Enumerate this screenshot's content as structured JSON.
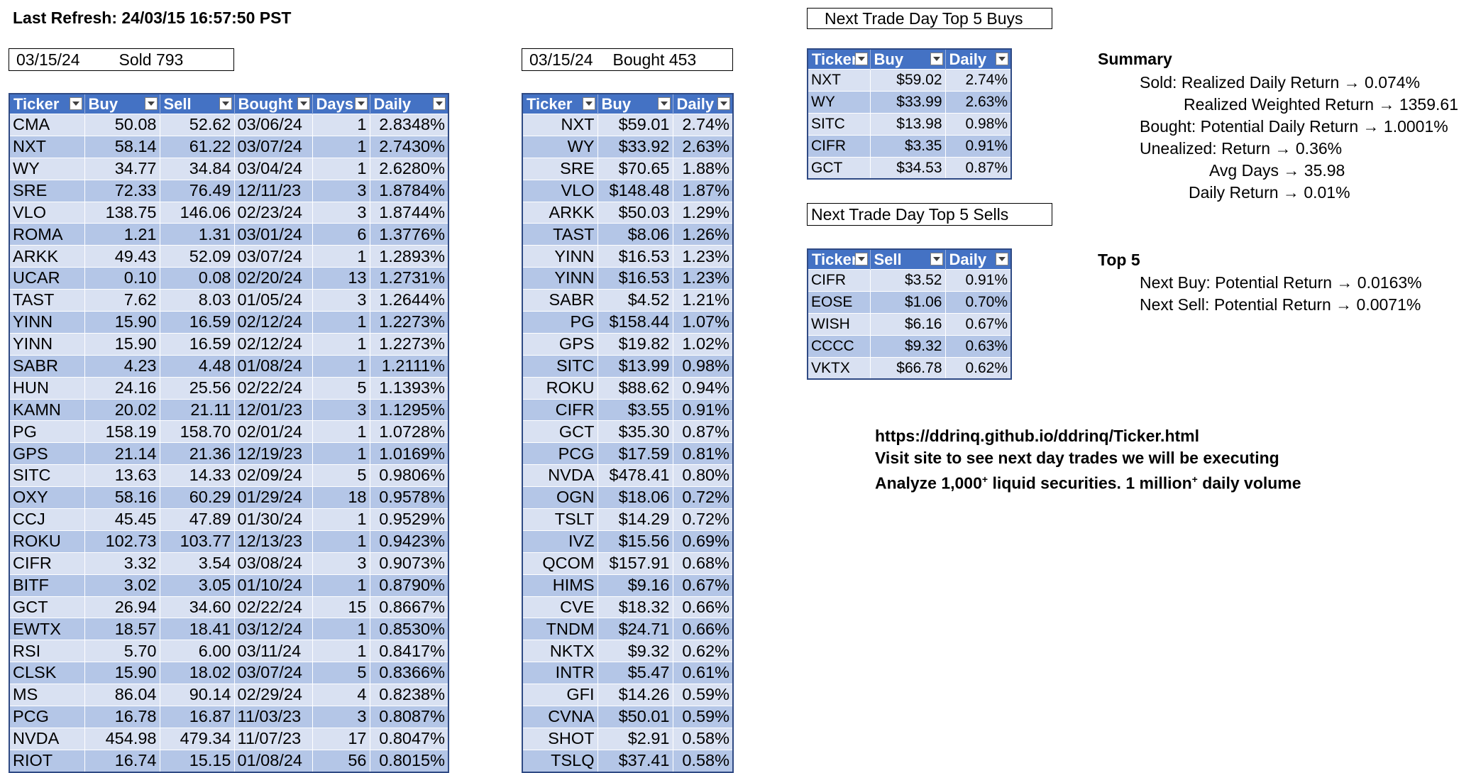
{
  "last_refresh": "Last Refresh: 24/03/15 16:57:50 PST",
  "sold_box": {
    "date": "03/15/24",
    "label": "Sold 793"
  },
  "bought_box": {
    "date": "03/15/24",
    "label": "Bought 453"
  },
  "sold_table": {
    "headers": [
      "Ticker",
      "Buy",
      "Sell",
      "Bought",
      "Days",
      "Daily"
    ],
    "rows": [
      [
        "CMA",
        "50.08",
        "52.62",
        "03/06/24",
        "1",
        "2.8348%"
      ],
      [
        "NXT",
        "58.14",
        "61.22",
        "03/07/24",
        "1",
        "2.7430%"
      ],
      [
        "WY",
        "34.77",
        "34.84",
        "03/04/24",
        "1",
        "2.6280%"
      ],
      [
        "SRE",
        "72.33",
        "76.49",
        "12/11/23",
        "3",
        "1.8784%"
      ],
      [
        "VLO",
        "138.75",
        "146.06",
        "02/23/24",
        "3",
        "1.8744%"
      ],
      [
        "ROMA",
        "1.21",
        "1.31",
        "03/01/24",
        "6",
        "1.3776%"
      ],
      [
        "ARKK",
        "49.43",
        "52.09",
        "03/07/24",
        "1",
        "1.2893%"
      ],
      [
        "UCAR",
        "0.10",
        "0.08",
        "02/20/24",
        "13",
        "1.2731%"
      ],
      [
        "TAST",
        "7.62",
        "8.03",
        "01/05/24",
        "3",
        "1.2644%"
      ],
      [
        "YINN",
        "15.90",
        "16.59",
        "02/12/24",
        "1",
        "1.2273%"
      ],
      [
        "YINN",
        "15.90",
        "16.59",
        "02/12/24",
        "1",
        "1.2273%"
      ],
      [
        "SABR",
        "4.23",
        "4.48",
        "01/08/24",
        "1",
        "1.2111%"
      ],
      [
        "HUN",
        "24.16",
        "25.56",
        "02/22/24",
        "5",
        "1.1393%"
      ],
      [
        "KAMN",
        "20.02",
        "21.11",
        "12/01/23",
        "3",
        "1.1295%"
      ],
      [
        "PG",
        "158.19",
        "158.70",
        "02/01/24",
        "1",
        "1.0728%"
      ],
      [
        "GPS",
        "21.14",
        "21.36",
        "12/19/23",
        "1",
        "1.0169%"
      ],
      [
        "SITC",
        "13.63",
        "14.33",
        "02/09/24",
        "5",
        "0.9806%"
      ],
      [
        "OXY",
        "58.16",
        "60.29",
        "01/29/24",
        "18",
        "0.9578%"
      ],
      [
        "CCJ",
        "45.45",
        "47.89",
        "01/30/24",
        "1",
        "0.9529%"
      ],
      [
        "ROKU",
        "102.73",
        "103.77",
        "12/13/23",
        "1",
        "0.9423%"
      ],
      [
        "CIFR",
        "3.32",
        "3.54",
        "03/08/24",
        "3",
        "0.9073%"
      ],
      [
        "BITF",
        "3.02",
        "3.05",
        "01/10/24",
        "1",
        "0.8790%"
      ],
      [
        "GCT",
        "26.94",
        "34.60",
        "02/22/24",
        "15",
        "0.8667%"
      ],
      [
        "EWTX",
        "18.57",
        "18.41",
        "03/12/24",
        "1",
        "0.8530%"
      ],
      [
        "RSI",
        "5.70",
        "6.00",
        "03/11/24",
        "1",
        "0.8417%"
      ],
      [
        "CLSK",
        "15.90",
        "18.02",
        "03/07/24",
        "5",
        "0.8366%"
      ],
      [
        "MS",
        "86.04",
        "90.14",
        "02/29/24",
        "4",
        "0.8238%"
      ],
      [
        "PCG",
        "16.78",
        "16.87",
        "11/03/23",
        "3",
        "0.8087%"
      ],
      [
        "NVDA",
        "454.98",
        "479.34",
        "11/07/23",
        "17",
        "0.8047%"
      ],
      [
        "RIOT",
        "16.74",
        "15.15",
        "01/08/24",
        "56",
        "0.8015%"
      ]
    ]
  },
  "bought_table": {
    "headers": [
      "Ticker",
      "Buy",
      "Daily"
    ],
    "rows": [
      [
        "NXT",
        "$59.01",
        "2.74%"
      ],
      [
        "WY",
        "$33.92",
        "2.63%"
      ],
      [
        "SRE",
        "$70.65",
        "1.88%"
      ],
      [
        "VLO",
        "$148.48",
        "1.87%"
      ],
      [
        "ARKK",
        "$50.03",
        "1.29%"
      ],
      [
        "TAST",
        "$8.06",
        "1.26%"
      ],
      [
        "YINN",
        "$16.53",
        "1.23%"
      ],
      [
        "YINN",
        "$16.53",
        "1.23%"
      ],
      [
        "SABR",
        "$4.52",
        "1.21%"
      ],
      [
        "PG",
        "$158.44",
        "1.07%"
      ],
      [
        "GPS",
        "$19.82",
        "1.02%"
      ],
      [
        "SITC",
        "$13.99",
        "0.98%"
      ],
      [
        "ROKU",
        "$88.62",
        "0.94%"
      ],
      [
        "CIFR",
        "$3.55",
        "0.91%"
      ],
      [
        "GCT",
        "$35.30",
        "0.87%"
      ],
      [
        "PCG",
        "$17.59",
        "0.81%"
      ],
      [
        "NVDA",
        "$478.41",
        "0.80%"
      ],
      [
        "OGN",
        "$18.06",
        "0.72%"
      ],
      [
        "TSLT",
        "$14.29",
        "0.72%"
      ],
      [
        "IVZ",
        "$15.56",
        "0.69%"
      ],
      [
        "QCOM",
        "$157.91",
        "0.68%"
      ],
      [
        "HIMS",
        "$9.16",
        "0.67%"
      ],
      [
        "CVE",
        "$18.32",
        "0.66%"
      ],
      [
        "TNDM",
        "$24.71",
        "0.66%"
      ],
      [
        "NKTX",
        "$9.32",
        "0.62%"
      ],
      [
        "INTR",
        "$5.47",
        "0.61%"
      ],
      [
        "GFI",
        "$14.26",
        "0.59%"
      ],
      [
        "CVNA",
        "$50.01",
        "0.59%"
      ],
      [
        "SHOT",
        "$2.91",
        "0.58%"
      ],
      [
        "TSLQ",
        "$37.41",
        "0.58%"
      ]
    ]
  },
  "top5_buys": {
    "title": "Next Trade Day Top 5 Buys",
    "headers": [
      "Ticker",
      "Buy",
      "Daily"
    ],
    "rows": [
      [
        "NXT",
        "$59.02",
        "2.74%"
      ],
      [
        "WY",
        "$33.99",
        "2.63%"
      ],
      [
        "SITC",
        "$13.98",
        "0.98%"
      ],
      [
        "CIFR",
        "$3.35",
        "0.91%"
      ],
      [
        "GCT",
        "$34.53",
        "0.87%"
      ]
    ]
  },
  "top5_sells": {
    "title": "Next Trade Day Top 5 Sells",
    "headers": [
      "Ticker",
      "Sell",
      "Daily"
    ],
    "rows": [
      [
        "CIFR",
        "$3.52",
        "0.91%"
      ],
      [
        "EOSE",
        "$1.06",
        "0.70%"
      ],
      [
        "WISH",
        "$6.16",
        "0.67%"
      ],
      [
        "CCCC",
        "$9.32",
        "0.63%"
      ],
      [
        "VKTX",
        "$66.78",
        "0.62%"
      ]
    ]
  },
  "summary": {
    "heading": "Summary",
    "lines": [
      "Sold: Realized Daily Return → 0.074%",
      "Realized Weighted Return → 1359.61",
      "Bought: Potential Daily Return → 1.0001%",
      "Unealized: Return → 0.36%",
      "Avg Days → 35.98",
      "Daily Return → 0.01%"
    ]
  },
  "top5_summary": {
    "heading": "Top 5",
    "lines": [
      "Next Buy: Potential Return → 0.0163%",
      "Next Sell: Potential Return → 0.0071%"
    ]
  },
  "info": {
    "url": "https://ddrinq.github.io/ddrinq/Ticker.html",
    "visit": "Visit site to see next day trades we will be executing",
    "analyze_prefix": "Analyze 1,000",
    "analyze_sup1": "+",
    "analyze_mid": " liquid securities.  1 million",
    "analyze_sup2": "+",
    "analyze_suffix": " daily volume"
  }
}
